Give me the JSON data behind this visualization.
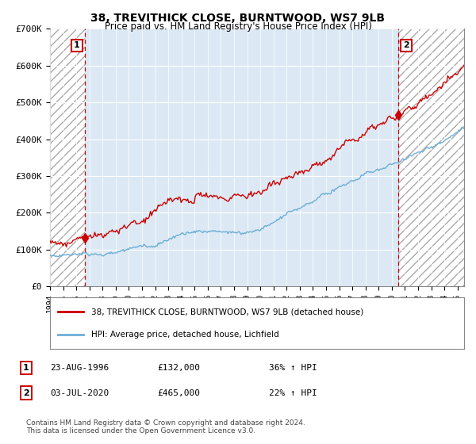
{
  "title": "38, TREVITHICK CLOSE, BURNTWOOD, WS7 9LB",
  "subtitle": "Price paid vs. HM Land Registry's House Price Index (HPI)",
  "title_fontsize": 10,
  "subtitle_fontsize": 8.5,
  "ylabel_values": [
    "£0",
    "£100K",
    "£200K",
    "£300K",
    "£400K",
    "£500K",
    "£600K",
    "£700K"
  ],
  "ylim": [
    0,
    700000
  ],
  "yticks": [
    0,
    100000,
    200000,
    300000,
    400000,
    500000,
    600000,
    700000
  ],
  "hpi_color": "#6baed6",
  "price_color": "#cc0000",
  "sale1_year": 1996.65,
  "sale1_price": 132000,
  "sale2_year": 2020.5,
  "sale2_price": 465000,
  "xmin": 1994,
  "xmax": 2025.5,
  "legend_label1": "38, TREVITHICK CLOSE, BURNTWOOD, WS7 9LB (detached house)",
  "legend_label2": "HPI: Average price, detached house, Lichfield",
  "annotation1_date": "23-AUG-1996",
  "annotation1_price": "£132,000",
  "annotation1_hpi": "36% ↑ HPI",
  "annotation2_date": "03-JUL-2020",
  "annotation2_price": "£465,000",
  "annotation2_hpi": "22% ↑ HPI",
  "footer": "Contains HM Land Registry data © Crown copyright and database right 2024.\nThis data is licensed under the Open Government Licence v3.0.",
  "bg_color": "#dce9f5",
  "hatch_bg": "white",
  "grid_color": "white"
}
